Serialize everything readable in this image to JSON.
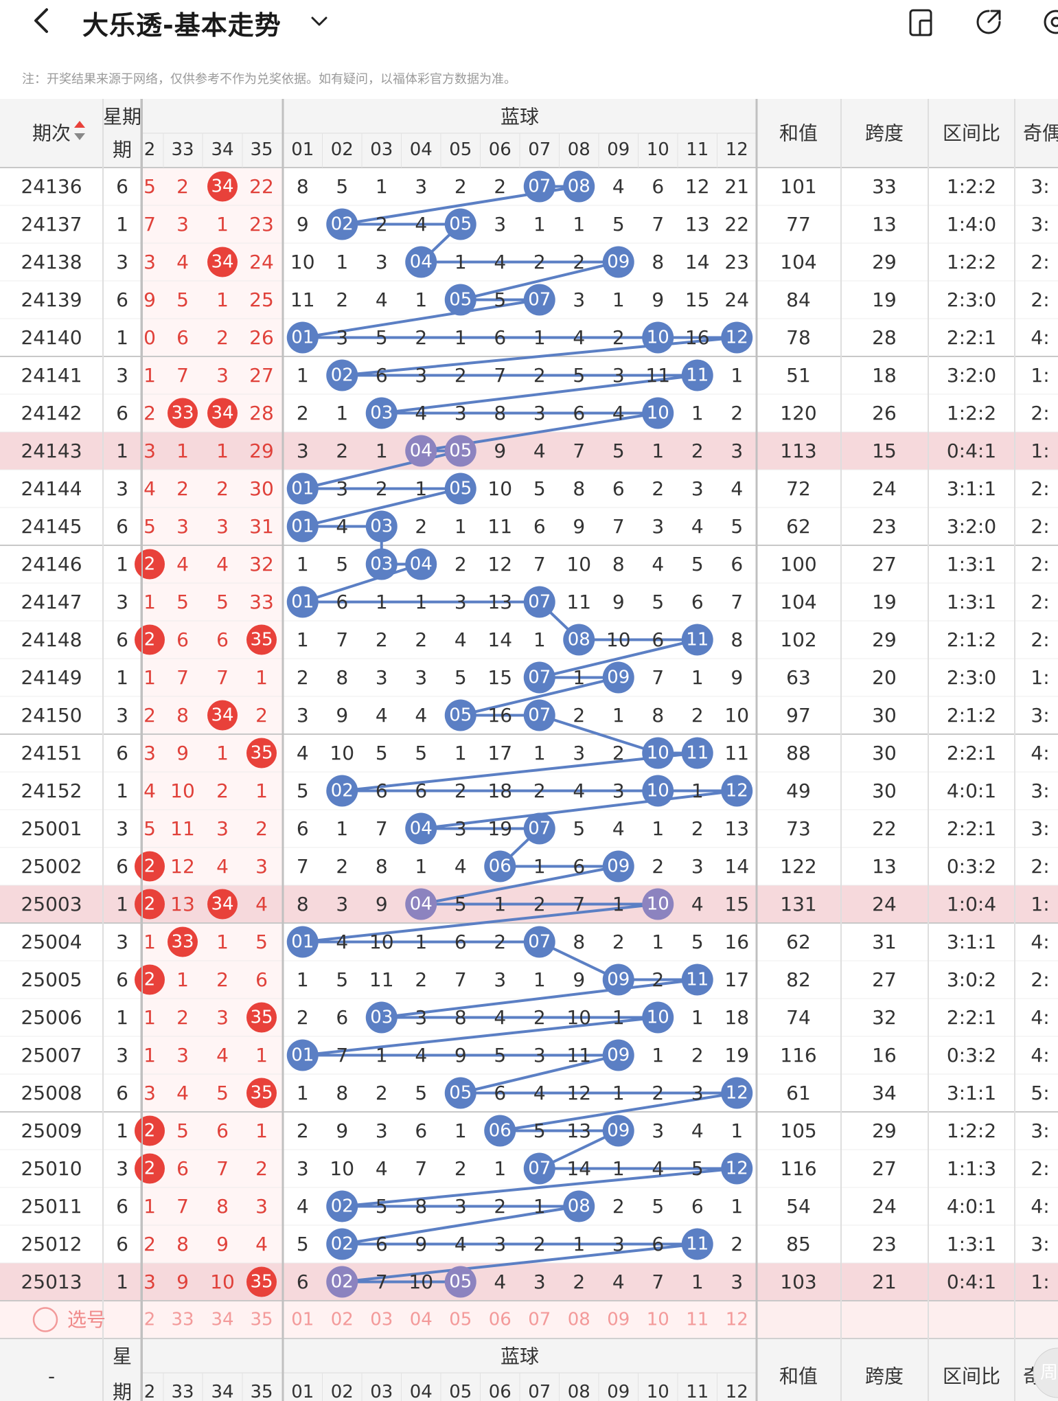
{
  "header": {
    "title": "大乐透-基本走势",
    "back_icon": "chevron-left-icon",
    "dropdown_icon": "chevron-down-icon",
    "icons": [
      "device-icon",
      "share-icon",
      "settings-icon"
    ]
  },
  "note": "注：开奖结果来源于网络，仅供参考不作为兑奖依据。如有疑问，以福体彩官方数据为准。",
  "table": {
    "header_period": "期次",
    "header_week": "星期",
    "header_week_bottom": "期",
    "header_blue": "蓝球",
    "header_sum": "和值",
    "header_span": "跨度",
    "header_ratio": "区间比",
    "header_odd": "奇偶",
    "red_cols": [
      "2",
      "33",
      "34",
      "35"
    ],
    "blue_cols": [
      "01",
      "02",
      "03",
      "04",
      "05",
      "06",
      "07",
      "08",
      "09",
      "10",
      "11",
      "12"
    ],
    "select_label": "选号",
    "footer_period": "-",
    "footer_week_top": "星",
    "footer_week_bottom": "期",
    "floating_label": "周"
  },
  "rows": [
    {
      "p": "24136",
      "w": "6",
      "r": [
        "5",
        "2",
        "34",
        "22"
      ],
      "b": [
        "8",
        "5",
        "1",
        "3",
        "2",
        "2",
        "07",
        "08",
        "4",
        "6",
        "12",
        "21"
      ],
      "s": "101",
      "k": "33",
      "z": "1:2:2",
      "o": "3:",
      "hl": false
    },
    {
      "p": "24137",
      "w": "1",
      "r": [
        "7",
        "3",
        "1",
        "23"
      ],
      "b": [
        "9",
        "02",
        "2",
        "4",
        "05",
        "3",
        "1",
        "1",
        "5",
        "7",
        "13",
        "22"
      ],
      "s": "77",
      "k": "13",
      "z": "1:4:0",
      "o": "3:",
      "hl": false
    },
    {
      "p": "24138",
      "w": "3",
      "r": [
        "3",
        "4",
        "34",
        "24"
      ],
      "b": [
        "10",
        "1",
        "3",
        "04",
        "1",
        "4",
        "2",
        "2",
        "09",
        "8",
        "14",
        "23"
      ],
      "s": "104",
      "k": "29",
      "z": "1:2:2",
      "o": "2:",
      "hl": false
    },
    {
      "p": "24139",
      "w": "6",
      "r": [
        "9",
        "5",
        "1",
        "25"
      ],
      "b": [
        "11",
        "2",
        "4",
        "1",
        "05",
        "5",
        "07",
        "3",
        "1",
        "9",
        "15",
        "24"
      ],
      "s": "84",
      "k": "19",
      "z": "2:3:0",
      "o": "2:",
      "hl": false
    },
    {
      "p": "24140",
      "w": "1",
      "r": [
        "0",
        "6",
        "2",
        "26"
      ],
      "b": [
        "01",
        "3",
        "5",
        "2",
        "1",
        "6",
        "1",
        "4",
        "2",
        "10",
        "16",
        "12"
      ],
      "s": "78",
      "k": "28",
      "z": "2:2:1",
      "o": "4:",
      "hl": false
    },
    {
      "p": "24141",
      "w": "3",
      "r": [
        "1",
        "7",
        "3",
        "27"
      ],
      "b": [
        "1",
        "02",
        "6",
        "3",
        "2",
        "7",
        "2",
        "5",
        "3",
        "11",
        "11",
        "1"
      ],
      "s": "51",
      "k": "18",
      "z": "3:2:0",
      "o": "1:",
      "hl": false
    },
    {
      "p": "24142",
      "w": "6",
      "r": [
        "2",
        "33",
        "34",
        "28"
      ],
      "b": [
        "2",
        "1",
        "03",
        "4",
        "3",
        "8",
        "3",
        "6",
        "4",
        "10",
        "1",
        "2"
      ],
      "s": "120",
      "k": "26",
      "z": "1:2:2",
      "o": "2:",
      "hl": false
    },
    {
      "p": "24143",
      "w": "1",
      "r": [
        "3",
        "1",
        "1",
        "29"
      ],
      "b": [
        "3",
        "2",
        "1",
        "04",
        "05",
        "9",
        "4",
        "7",
        "5",
        "1",
        "2",
        "3"
      ],
      "s": "113",
      "k": "15",
      "z": "0:4:1",
      "o": "1:",
      "hl": true
    },
    {
      "p": "24144",
      "w": "3",
      "r": [
        "4",
        "2",
        "2",
        "30"
      ],
      "b": [
        "01",
        "3",
        "2",
        "1",
        "05",
        "10",
        "5",
        "8",
        "6",
        "2",
        "3",
        "4"
      ],
      "s": "72",
      "k": "24",
      "z": "3:1:1",
      "o": "2:",
      "hl": false
    },
    {
      "p": "24145",
      "w": "6",
      "r": [
        "5",
        "3",
        "3",
        "31"
      ],
      "b": [
        "01",
        "4",
        "03",
        "2",
        "1",
        "11",
        "6",
        "9",
        "7",
        "3",
        "4",
        "5"
      ],
      "s": "62",
      "k": "23",
      "z": "3:2:0",
      "o": "2:",
      "hl": false
    },
    {
      "p": "24146",
      "w": "1",
      "r": [
        "2",
        "4",
        "4",
        "32"
      ],
      "b": [
        "1",
        "5",
        "03",
        "04",
        "2",
        "12",
        "7",
        "10",
        "8",
        "4",
        "5",
        "6"
      ],
      "s": "100",
      "k": "27",
      "z": "1:3:1",
      "o": "2:",
      "hl": false
    },
    {
      "p": "24147",
      "w": "3",
      "r": [
        "1",
        "5",
        "5",
        "33"
      ],
      "b": [
        "01",
        "6",
        "1",
        "1",
        "3",
        "13",
        "07",
        "11",
        "9",
        "5",
        "6",
        "7"
      ],
      "s": "104",
      "k": "19",
      "z": "1:3:1",
      "o": "2:",
      "hl": false
    },
    {
      "p": "24148",
      "w": "6",
      "r": [
        "2",
        "6",
        "6",
        "35"
      ],
      "b": [
        "1",
        "7",
        "2",
        "2",
        "4",
        "14",
        "1",
        "08",
        "10",
        "6",
        "11",
        "8"
      ],
      "s": "102",
      "k": "29",
      "z": "2:1:2",
      "o": "2:",
      "hl": false
    },
    {
      "p": "24149",
      "w": "1",
      "r": [
        "1",
        "7",
        "7",
        "1"
      ],
      "b": [
        "2",
        "8",
        "3",
        "3",
        "5",
        "15",
        "07",
        "1",
        "09",
        "7",
        "1",
        "9"
      ],
      "s": "63",
      "k": "20",
      "z": "2:3:0",
      "o": "1:",
      "hl": false
    },
    {
      "p": "24150",
      "w": "3",
      "r": [
        "2",
        "8",
        "34",
        "2"
      ],
      "b": [
        "3",
        "9",
        "4",
        "4",
        "05",
        "16",
        "07",
        "2",
        "1",
        "8",
        "2",
        "10"
      ],
      "s": "97",
      "k": "30",
      "z": "2:1:2",
      "o": "3:",
      "hl": false
    },
    {
      "p": "24151",
      "w": "6",
      "r": [
        "3",
        "9",
        "1",
        "35"
      ],
      "b": [
        "4",
        "10",
        "5",
        "5",
        "1",
        "17",
        "1",
        "3",
        "2",
        "10",
        "11",
        "11"
      ],
      "s": "88",
      "k": "30",
      "z": "2:2:1",
      "o": "4:",
      "hl": false
    },
    {
      "p": "24152",
      "w": "1",
      "r": [
        "4",
        "10",
        "2",
        "1"
      ],
      "b": [
        "5",
        "02",
        "6",
        "6",
        "2",
        "18",
        "2",
        "4",
        "3",
        "10",
        "1",
        "12"
      ],
      "s": "49",
      "k": "30",
      "z": "4:0:1",
      "o": "3:",
      "hl": false
    },
    {
      "p": "25001",
      "w": "3",
      "r": [
        "5",
        "11",
        "3",
        "2"
      ],
      "b": [
        "6",
        "1",
        "7",
        "04",
        "3",
        "19",
        "07",
        "5",
        "4",
        "1",
        "2",
        "13"
      ],
      "s": "73",
      "k": "22",
      "z": "2:2:1",
      "o": "3:",
      "hl": false
    },
    {
      "p": "25002",
      "w": "6",
      "r": [
        "2",
        "12",
        "4",
        "3"
      ],
      "b": [
        "7",
        "2",
        "8",
        "1",
        "4",
        "06",
        "1",
        "6",
        "09",
        "2",
        "3",
        "14"
      ],
      "s": "122",
      "k": "13",
      "z": "0:3:2",
      "o": "2:",
      "hl": false
    },
    {
      "p": "25003",
      "w": "1",
      "r": [
        "2",
        "13",
        "34",
        "4"
      ],
      "b": [
        "8",
        "3",
        "9",
        "04",
        "5",
        "1",
        "2",
        "7",
        "1",
        "10",
        "4",
        "15"
      ],
      "s": "131",
      "k": "24",
      "z": "1:0:4",
      "o": "1:",
      "hl": true
    },
    {
      "p": "25004",
      "w": "3",
      "r": [
        "1",
        "33",
        "1",
        "5"
      ],
      "b": [
        "01",
        "4",
        "10",
        "1",
        "6",
        "2",
        "07",
        "8",
        "2",
        "1",
        "5",
        "16"
      ],
      "s": "62",
      "k": "31",
      "z": "3:1:1",
      "o": "4:",
      "hl": false
    },
    {
      "p": "25005",
      "w": "6",
      "r": [
        "2",
        "1",
        "2",
        "6"
      ],
      "b": [
        "1",
        "5",
        "11",
        "2",
        "7",
        "3",
        "1",
        "9",
        "09",
        "2",
        "11",
        "17"
      ],
      "s": "82",
      "k": "27",
      "z": "3:0:2",
      "o": "2:",
      "hl": false
    },
    {
      "p": "25006",
      "w": "1",
      "r": [
        "1",
        "2",
        "3",
        "35"
      ],
      "b": [
        "2",
        "6",
        "03",
        "3",
        "8",
        "4",
        "2",
        "10",
        "1",
        "10",
        "1",
        "18"
      ],
      "s": "74",
      "k": "32",
      "z": "2:2:1",
      "o": "4:",
      "hl": false
    },
    {
      "p": "25007",
      "w": "3",
      "r": [
        "1",
        "3",
        "4",
        "1"
      ],
      "b": [
        "01",
        "7",
        "1",
        "4",
        "9",
        "5",
        "3",
        "11",
        "09",
        "1",
        "2",
        "19"
      ],
      "s": "116",
      "k": "16",
      "z": "0:3:2",
      "o": "4:",
      "hl": false
    },
    {
      "p": "25008",
      "w": "6",
      "r": [
        "3",
        "4",
        "5",
        "35"
      ],
      "b": [
        "1",
        "8",
        "2",
        "5",
        "05",
        "6",
        "4",
        "12",
        "1",
        "2",
        "3",
        "12"
      ],
      "s": "61",
      "k": "34",
      "z": "3:1:1",
      "o": "5:",
      "hl": false
    },
    {
      "p": "25009",
      "w": "1",
      "r": [
        "2",
        "5",
        "6",
        "1"
      ],
      "b": [
        "2",
        "9",
        "3",
        "6",
        "1",
        "06",
        "5",
        "13",
        "09",
        "3",
        "4",
        "1"
      ],
      "s": "105",
      "k": "29",
      "z": "1:2:2",
      "o": "3:",
      "hl": false
    },
    {
      "p": "25010",
      "w": "3",
      "r": [
        "2",
        "6",
        "7",
        "2"
      ],
      "b": [
        "3",
        "10",
        "4",
        "7",
        "2",
        "1",
        "07",
        "14",
        "1",
        "4",
        "5",
        "12"
      ],
      "s": "116",
      "k": "27",
      "z": "1:1:3",
      "o": "2:",
      "hl": false
    },
    {
      "p": "25011",
      "w": "6",
      "r": [
        "1",
        "7",
        "8",
        "3"
      ],
      "b": [
        "4",
        "02",
        "5",
        "8",
        "3",
        "2",
        "1",
        "08",
        "2",
        "5",
        "6",
        "1"
      ],
      "s": "54",
      "k": "24",
      "z": "4:0:1",
      "o": "4:",
      "hl": false
    },
    {
      "p": "25012",
      "w": "6",
      "r": [
        "2",
        "8",
        "9",
        "4"
      ],
      "b": [
        "5",
        "02",
        "6",
        "9",
        "4",
        "3",
        "2",
        "1",
        "3",
        "6",
        "11",
        "2"
      ],
      "s": "85",
      "k": "23",
      "z": "1:3:1",
      "o": "3:",
      "hl": false
    },
    {
      "p": "25013",
      "w": "1",
      "r": [
        "3",
        "9",
        "10",
        "35"
      ],
      "b": [
        "6",
        "02",
        "7",
        "10",
        "05",
        "4",
        "3",
        "2",
        "4",
        "7",
        "1",
        "3"
      ],
      "s": "103",
      "k": "21",
      "z": "0:4:1",
      "o": "1:",
      "hl": true
    }
  ],
  "colors": {
    "red": "#e8413a",
    "blue": "#5b7fc4",
    "blue_hl": "#8c83bf",
    "row_hl": "#f6d9dc",
    "header_bg": "#f4f4f4",
    "red_text": "#e0413a",
    "red_bg": "#fdecec"
  }
}
